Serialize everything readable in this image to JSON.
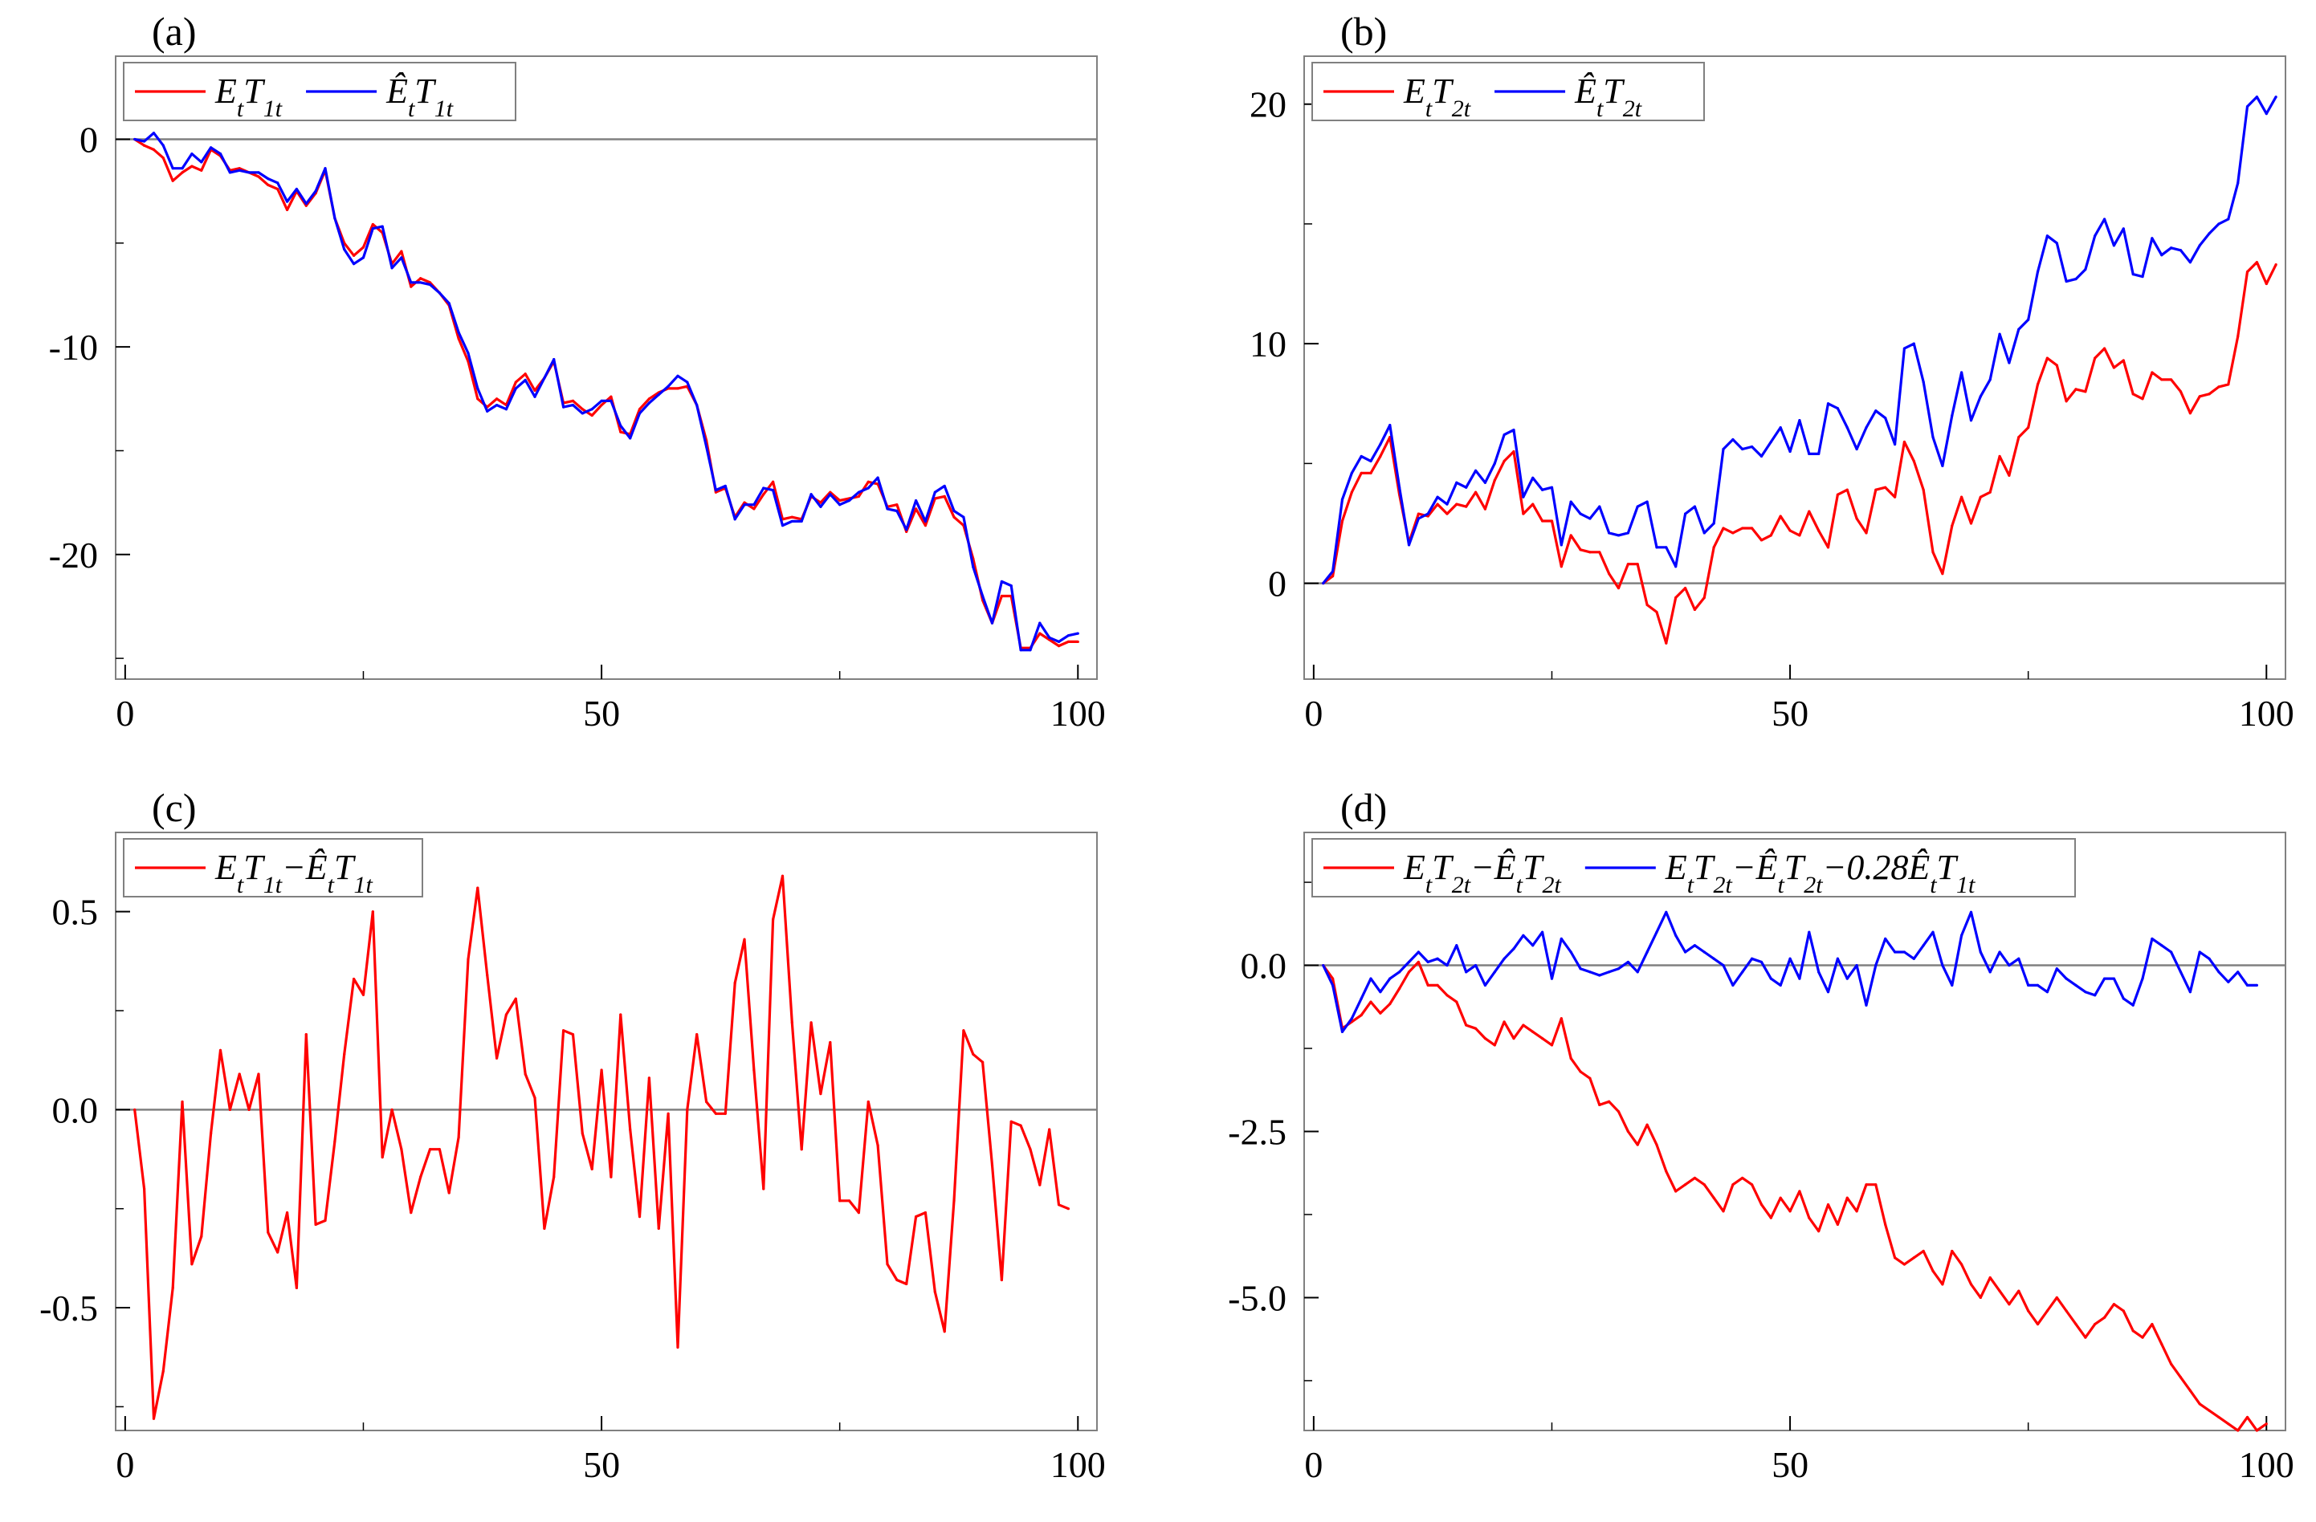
{
  "colors": {
    "red": "#ff0000",
    "blue": "#0000ff",
    "zero_line": "#808080",
    "frame": "#808080"
  },
  "chart_data": [
    {
      "type": "line",
      "panel_label": "(a)",
      "xlim": [
        -1,
        102
      ],
      "ylim": [
        -26,
        4
      ],
      "x_tick_labels": [
        "0",
        "50",
        "100"
      ],
      "x_ticks": [
        0,
        50,
        100
      ],
      "y_tick_labels": [
        "0",
        "-10",
        "-20"
      ],
      "y_ticks": [
        0,
        -10,
        -20
      ],
      "legend": [
        {
          "name": "E_t T_1t",
          "html": "E<sub>t</sub>T<sub>1t</sub>",
          "color_key": "red"
        },
        {
          "name": "Ê_t T_1t",
          "html": "Ê<sub>t</sub>T<sub>1t</sub>",
          "color_key": "blue"
        }
      ],
      "series": [
        {
          "name": "E_t T_1t",
          "color_key": "red",
          "x_start": 1,
          "values": [
            0,
            -0.3,
            -0.5,
            -0.9,
            -2.0,
            -1.6,
            -1.3,
            -1.5,
            -0.5,
            -0.8,
            -1.5,
            -1.4,
            -1.6,
            -1.8,
            -2.2,
            -2.4,
            -3.4,
            -2.5,
            -3.2,
            -2.6,
            -1.5,
            -3.8,
            -5.0,
            -5.6,
            -5.2,
            -4.1,
            -4.5,
            -6.0,
            -5.4,
            -7.1,
            -6.7,
            -6.9,
            -7.4,
            -8.0,
            -9.6,
            -10.7,
            -12.5,
            -12.9,
            -12.5,
            -12.8,
            -11.7,
            -11.3,
            -12.1,
            -11.5,
            -10.7,
            -12.7,
            -12.6,
            -13.0,
            -13.3,
            -12.8,
            -12.4,
            -14.1,
            -14.2,
            -13.0,
            -12.5,
            -12.2,
            -12.0,
            -12.0,
            -11.9,
            -12.8,
            -14.5,
            -17.0,
            -16.8,
            -18.2,
            -17.5,
            -17.8,
            -17.1,
            -16.5,
            -18.3,
            -18.2,
            -18.3,
            -17.2,
            -17.5,
            -17.0,
            -17.4,
            -17.3,
            -17.2,
            -16.5,
            -16.6,
            -17.7,
            -17.6,
            -18.9,
            -17.8,
            -18.6,
            -17.3,
            -17.2,
            -18.2,
            -18.6,
            -20.2,
            -22.2,
            -23.3,
            -22.0,
            -22.0,
            -24.5,
            -24.5,
            -23.8,
            -24.1,
            -24.4,
            -24.2,
            -24.2
          ]
        },
        {
          "name": "Ê_t T_1t",
          "color_key": "blue",
          "x_start": 1,
          "values": [
            0,
            -0.1,
            0.3,
            -0.3,
            -1.4,
            -1.4,
            -0.7,
            -1.1,
            -0.4,
            -0.7,
            -1.6,
            -1.5,
            -1.6,
            -1.6,
            -1.9,
            -2.1,
            -3.0,
            -2.4,
            -3.1,
            -2.5,
            -1.4,
            -3.8,
            -5.3,
            -6.0,
            -5.7,
            -4.3,
            -4.2,
            -6.2,
            -5.7,
            -6.9,
            -6.9,
            -7.0,
            -7.4,
            -7.9,
            -9.3,
            -10.3,
            -12.0,
            -13.1,
            -12.8,
            -13.0,
            -12.0,
            -11.6,
            -12.4,
            -11.5,
            -10.6,
            -12.9,
            -12.8,
            -13.2,
            -13.0,
            -12.6,
            -12.6,
            -13.8,
            -14.4,
            -13.2,
            -12.7,
            -12.3,
            -11.9,
            -11.4,
            -11.7,
            -12.8,
            -14.8,
            -16.9,
            -16.7,
            -18.3,
            -17.6,
            -17.6,
            -16.8,
            -16.9,
            -18.6,
            -18.4,
            -18.4,
            -17.1,
            -17.7,
            -17.1,
            -17.6,
            -17.4,
            -17.0,
            -16.8,
            -16.3,
            -17.8,
            -17.9,
            -18.8,
            -17.4,
            -18.4,
            -17.0,
            -16.7,
            -17.9,
            -18.2,
            -20.6,
            -22.0,
            -23.3,
            -21.3,
            -21.5,
            -24.6,
            -24.6,
            -23.3,
            -24.0,
            -24.2,
            -23.9,
            -23.8
          ]
        }
      ]
    },
    {
      "type": "line",
      "panel_label": "(b)",
      "xlim": [
        -1,
        102
      ],
      "ylim": [
        -4,
        22
      ],
      "x_tick_labels": [
        "0",
        "50",
        "100"
      ],
      "x_ticks": [
        0,
        50,
        100
      ],
      "y_tick_labels": [
        "0",
        "10",
        "20"
      ],
      "y_ticks": [
        0,
        10,
        20
      ],
      "legend": [
        {
          "name": "E_t T_2t",
          "html": "E<sub>t</sub>T<sub>2t</sub>",
          "color_key": "red"
        },
        {
          "name": "Ê_t T_2t",
          "html": "Ê<sub>t</sub>T<sub>2t</sub>",
          "color_key": "blue"
        }
      ],
      "series": [
        {
          "name": "E_t T_2t",
          "color_key": "red",
          "x_start": 1,
          "values": [
            0,
            0.3,
            2.6,
            3.8,
            4.6,
            4.6,
            5.3,
            6.1,
            3.7,
            1.7,
            2.9,
            2.8,
            3.3,
            2.9,
            3.3,
            3.2,
            3.8,
            3.1,
            4.3,
            5.1,
            5.5,
            2.9,
            3.3,
            2.6,
            2.6,
            0.7,
            2.0,
            1.4,
            1.3,
            1.3,
            0.4,
            -0.2,
            0.8,
            0.8,
            -0.9,
            -1.2,
            -2.5,
            -0.6,
            -0.2,
            -1.1,
            -0.6,
            1.5,
            2.3,
            2.1,
            2.3,
            2.3,
            1.8,
            2.0,
            2.8,
            2.2,
            2.0,
            3.0,
            2.2,
            1.5,
            3.7,
            3.9,
            2.7,
            2.1,
            3.9,
            4.0,
            3.6,
            5.9,
            5.1,
            3.9,
            1.3,
            0.4,
            2.4,
            3.6,
            2.5,
            3.6,
            3.8,
            5.3,
            4.5,
            6.1,
            6.5,
            8.3,
            9.4,
            9.1,
            7.6,
            8.1,
            8.0,
            9.4,
            9.8,
            9.0,
            9.3,
            7.9,
            7.7,
            8.8,
            8.5,
            8.5,
            8.0,
            7.1,
            7.8,
            7.9,
            8.2,
            8.3,
            10.3,
            13.0,
            13.4,
            12.5,
            13.3
          ]
        },
        {
          "name": "Ê_t T_2t",
          "color_key": "blue",
          "x_start": 1,
          "values": [
            0,
            0.5,
            3.5,
            4.6,
            5.3,
            5.1,
            5.8,
            6.6,
            4.0,
            1.6,
            2.7,
            2.9,
            3.6,
            3.3,
            4.2,
            4.0,
            4.7,
            4.2,
            5.0,
            6.2,
            6.4,
            3.6,
            4.4,
            3.9,
            4.0,
            1.6,
            3.4,
            2.9,
            2.7,
            3.2,
            2.1,
            2.0,
            2.1,
            3.2,
            3.4,
            1.5,
            1.5,
            0.7,
            2.9,
            3.2,
            2.1,
            2.5,
            5.6,
            6.0,
            5.6,
            5.7,
            5.3,
            5.9,
            6.5,
            5.5,
            6.8,
            5.4,
            5.4,
            7.5,
            7.3,
            6.5,
            5.6,
            6.5,
            7.2,
            6.9,
            5.8,
            9.8,
            10.0,
            8.4,
            6.1,
            4.9,
            7.0,
            8.8,
            6.8,
            7.8,
            8.5,
            10.4,
            9.2,
            10.6,
            11.0,
            13.0,
            14.5,
            14.2,
            12.6,
            12.7,
            13.1,
            14.5,
            15.2,
            14.1,
            14.8,
            12.9,
            12.8,
            14.4,
            13.7,
            14.0,
            13.9,
            13.4,
            14.1,
            14.6,
            15.0,
            15.2,
            16.7,
            19.9,
            20.3,
            19.6,
            20.3
          ]
        }
      ]
    },
    {
      "type": "line",
      "panel_label": "(c)",
      "xlim": [
        -1,
        102
      ],
      "ylim": [
        -0.81,
        0.7
      ],
      "x_tick_labels": [
        "0",
        "50",
        "100"
      ],
      "x_ticks": [
        0,
        50,
        100
      ],
      "y_tick_labels": [
        "0.5",
        "0.0",
        "-0.5"
      ],
      "y_ticks": [
        0.5,
        0.0,
        -0.5
      ],
      "legend": [
        {
          "name": "E_t T_1t − Ê_t T_1t",
          "html": "E<sub>t</sub>T<sub>1t</sub>−Ê<sub>t</sub>T<sub>1t</sub>",
          "color_key": "red"
        }
      ],
      "series": [
        {
          "name": "E_t T_1t − Ê_t T_1t",
          "color_key": "red",
          "x_start": 1,
          "values": [
            0.0,
            -0.2,
            -0.78,
            -0.66,
            -0.45,
            0.02,
            -0.39,
            -0.32,
            -0.06,
            0.15,
            0.0,
            0.09,
            0.0,
            0.09,
            -0.31,
            -0.36,
            -0.26,
            -0.45,
            0.19,
            -0.29,
            -0.28,
            -0.08,
            0.14,
            0.33,
            0.29,
            0.5,
            -0.12,
            0.0,
            -0.1,
            -0.26,
            -0.17,
            -0.1,
            -0.1,
            -0.21,
            -0.07,
            0.38,
            0.56,
            0.34,
            0.13,
            0.24,
            0.28,
            0.09,
            0.03,
            -0.3,
            -0.17,
            0.2,
            0.19,
            -0.06,
            -0.15,
            0.1,
            -0.17,
            0.24,
            -0.05,
            -0.27,
            0.08,
            -0.3,
            -0.01,
            -0.6,
            0.0,
            0.19,
            0.02,
            -0.01,
            -0.01,
            0.32,
            0.43,
            0.1,
            -0.2,
            0.48,
            0.59,
            0.22,
            -0.1,
            0.22,
            0.04,
            0.17,
            -0.23,
            -0.23,
            -0.26,
            0.02,
            -0.09,
            -0.39,
            -0.43,
            -0.44,
            -0.27,
            -0.26,
            -0.46,
            -0.56,
            -0.23,
            0.2,
            0.14,
            0.12,
            -0.14,
            -0.43,
            -0.03,
            -0.04,
            -0.1,
            -0.19,
            -0.05,
            -0.24,
            -0.25
          ]
        }
      ]
    },
    {
      "type": "line",
      "panel_label": "(d)",
      "xlim": [
        -1,
        102
      ],
      "ylim": [
        -7.0,
        2.0
      ],
      "x_tick_labels": [
        "0",
        "50",
        "100"
      ],
      "x_ticks": [
        0,
        50,
        100
      ],
      "y_tick_labels": [
        "0.0",
        "-2.5",
        "-5.0"
      ],
      "y_ticks": [
        0.0,
        -2.5,
        -5.0
      ],
      "legend": [
        {
          "name": "E_t T_2t − Ê_t T_2t",
          "html": "E<sub>t</sub>T<sub>2t</sub>−Ê<sub>t</sub>T<sub>2t</sub>",
          "color_key": "red"
        },
        {
          "name": "E_t T_2t − Ê_t T_2t − 0.28 Ê_t T_1t",
          "html": "E<sub>t</sub>T<sub>2t</sub>−Ê<sub>t</sub>T<sub>2t</sub>−0.28Ê<sub>t</sub>T<sub>1t</sub>",
          "color_key": "blue"
        }
      ],
      "series": [
        {
          "name": "E_t T_2t − Ê_t T_2t",
          "color_key": "red",
          "x_start": 1,
          "values": [
            0.0,
            -0.2,
            -0.95,
            -0.85,
            -0.75,
            -0.55,
            -0.72,
            -0.58,
            -0.35,
            -0.1,
            0.05,
            -0.3,
            -0.3,
            -0.45,
            -0.55,
            -0.9,
            -0.95,
            -1.1,
            -1.2,
            -0.85,
            -1.1,
            -0.9,
            -1.0,
            -1.1,
            -1.2,
            -0.8,
            -1.4,
            -1.6,
            -1.7,
            -2.1,
            -2.05,
            -2.2,
            -2.5,
            -2.7,
            -2.4,
            -2.7,
            -3.1,
            -3.4,
            -3.3,
            -3.2,
            -3.3,
            -3.5,
            -3.7,
            -3.3,
            -3.2,
            -3.3,
            -3.6,
            -3.8,
            -3.5,
            -3.7,
            -3.4,
            -3.8,
            -4.0,
            -3.6,
            -3.9,
            -3.5,
            -3.7,
            -3.3,
            -3.3,
            -3.9,
            -4.4,
            -4.5,
            -4.4,
            -4.3,
            -4.6,
            -4.8,
            -4.3,
            -4.5,
            -4.8,
            -5.0,
            -4.7,
            -4.9,
            -5.1,
            -4.9,
            -5.2,
            -5.4,
            -5.2,
            -5.0,
            -5.2,
            -5.4,
            -5.6,
            -5.4,
            -5.3,
            -5.1,
            -5.2,
            -5.5,
            -5.6,
            -5.4,
            -5.7,
            -6.0,
            -6.2,
            -6.4,
            -6.6,
            -6.7,
            -6.8,
            -6.9,
            -7.0,
            -6.8,
            -7.0,
            -6.9
          ]
        },
        {
          "name": "E_t T_2t − Ê_t T_2t − 0.28 Ê_t T_1t",
          "color_key": "blue",
          "x_start": 1,
          "values": [
            0.0,
            -0.3,
            -1.0,
            -0.8,
            -0.5,
            -0.2,
            -0.4,
            -0.2,
            -0.1,
            0.05,
            0.2,
            0.05,
            0.1,
            0.0,
            0.3,
            -0.1,
            0.0,
            -0.3,
            -0.1,
            0.1,
            0.25,
            0.45,
            0.3,
            0.5,
            -0.2,
            0.4,
            0.2,
            -0.05,
            -0.1,
            -0.15,
            -0.1,
            -0.05,
            0.05,
            -0.1,
            0.2,
            0.5,
            0.8,
            0.45,
            0.2,
            0.3,
            0.2,
            0.1,
            0.0,
            -0.3,
            -0.1,
            0.1,
            0.05,
            -0.2,
            -0.3,
            0.1,
            -0.2,
            0.5,
            -0.1,
            -0.4,
            0.1,
            -0.2,
            0.0,
            -0.6,
            0.0,
            0.4,
            0.2,
            0.2,
            0.1,
            0.3,
            0.5,
            0.0,
            -0.3,
            0.45,
            0.8,
            0.2,
            -0.1,
            0.2,
            0.0,
            0.1,
            -0.3,
            -0.3,
            -0.4,
            -0.05,
            -0.2,
            -0.3,
            -0.4,
            -0.45,
            -0.2,
            -0.2,
            -0.5,
            -0.6,
            -0.2,
            0.4,
            0.3,
            0.2,
            -0.1,
            -0.4,
            0.2,
            0.1,
            -0.1,
            -0.25,
            -0.1,
            -0.3,
            -0.3
          ]
        }
      ]
    }
  ]
}
